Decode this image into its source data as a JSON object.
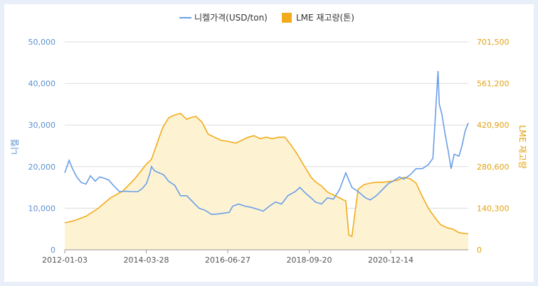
{
  "chart_data": {
    "type": "line",
    "legend": {
      "position": "top",
      "items": [
        "니켈가격(USD/ton)",
        "LME 재고량(톤)"
      ]
    },
    "ylabel": "니켈",
    "y2label": "LME 재고량",
    "ylim": [
      0,
      50000
    ],
    "y2lim": [
      0,
      701500
    ],
    "yticks": [
      "0",
      "10,000",
      "20,000",
      "30,000",
      "40,000",
      "50,000"
    ],
    "y2ticks": [
      "0",
      "140,300",
      "280,600",
      "420,900",
      "561,200",
      "701,500"
    ],
    "xticks": [
      "2012-01-03",
      "2014-03-28",
      "2016-06-27",
      "2018-09-20",
      "2020-12-14"
    ],
    "grid": true,
    "colors": {
      "nickel": "#6a9fe8",
      "inventory": "#f2ab1c",
      "inventory_fill": "#fdf3d3"
    },
    "series": [
      {
        "name": "니켈가격(USD/ton)",
        "axis": "left",
        "x": [
          "2012-01-03",
          "2012-02-15",
          "2012-03-20",
          "2012-05-01",
          "2012-06-15",
          "2012-08-01",
          "2012-09-15",
          "2012-11-01",
          "2012-12-15",
          "2013-02-01",
          "2013-03-15",
          "2013-05-01",
          "2013-07-01",
          "2013-09-01",
          "2013-11-01",
          "2014-01-02",
          "2014-02-15",
          "2014-03-28",
          "2014-05-01",
          "2014-05-15",
          "2014-06-15",
          "2014-08-01",
          "2014-09-15",
          "2014-11-01",
          "2015-01-02",
          "2015-03-01",
          "2015-05-01",
          "2015-07-01",
          "2015-09-01",
          "2015-11-01",
          "2016-01-04",
          "2016-03-01",
          "2016-05-01",
          "2016-06-27",
          "2016-08-01",
          "2016-10-01",
          "2016-12-01",
          "2017-02-01",
          "2017-04-01",
          "2017-06-01",
          "2017-08-01",
          "2017-10-01",
          "2017-12-01",
          "2018-02-01",
          "2018-04-15",
          "2018-06-01",
          "2018-08-01",
          "2018-09-20",
          "2018-11-01",
          "2019-01-02",
          "2019-03-01",
          "2019-05-01",
          "2019-07-01",
          "2019-09-01",
          "2019-11-01",
          "2020-01-02",
          "2020-03-15",
          "2020-05-01",
          "2020-07-01",
          "2020-09-01",
          "2020-11-01",
          "2020-12-14",
          "2021-02-15",
          "2021-04-01",
          "2021-06-01",
          "2021-08-01",
          "2021-10-01",
          "2021-12-01",
          "2022-01-15",
          "2022-03-07",
          "2022-03-20",
          "2022-04-15",
          "2022-05-15",
          "2022-06-15",
          "2022-07-15",
          "2022-08-15",
          "2022-10-01",
          "2022-11-01",
          "2022-12-01",
          "2023-01-02"
        ],
        "values": [
          18500,
          21500,
          19500,
          17500,
          16200,
          15800,
          17800,
          16500,
          17500,
          17200,
          16800,
          15500,
          14000,
          14100,
          14000,
          14000,
          14800,
          16000,
          18500,
          20000,
          19000,
          18500,
          18000,
          16500,
          15500,
          13000,
          13000,
          11500,
          10000,
          9500,
          8500,
          8600,
          8800,
          9000,
          10500,
          11000,
          10500,
          10200,
          9800,
          9300,
          10500,
          11500,
          11000,
          13000,
          14000,
          15000,
          13500,
          12500,
          11500,
          11000,
          12500,
          12200,
          14500,
          18500,
          15000,
          14000,
          12500,
          12000,
          13000,
          14500,
          16000,
          16500,
          17500,
          17000,
          18000,
          19500,
          19500,
          20500,
          22000,
          43000,
          35000,
          32500,
          28000,
          24000,
          19500,
          23000,
          22500,
          25000,
          28500,
          30500
        ]
      },
      {
        "name": "LME 재고량(톤)",
        "axis": "right",
        "x": [
          "2012-01-03",
          "2012-04-01",
          "2012-08-01",
          "2012-12-01",
          "2013-04-01",
          "2013-08-01",
          "2013-12-01",
          "2014-03-28",
          "2014-05-15",
          "2014-07-01",
          "2014-09-01",
          "2014-11-01",
          "2015-01-02",
          "2015-03-01",
          "2015-05-01",
          "2015-06-01",
          "2015-08-01",
          "2015-10-01",
          "2015-12-01",
          "2016-02-01",
          "2016-04-01",
          "2016-06-27",
          "2016-09-01",
          "2016-11-01",
          "2017-01-02",
          "2017-03-01",
          "2017-05-01",
          "2017-07-01",
          "2017-09-01",
          "2017-11-01",
          "2018-01-02",
          "2018-03-01",
          "2018-05-01",
          "2018-07-01",
          "2018-09-20",
          "2018-11-01",
          "2019-01-02",
          "2019-03-01",
          "2019-05-01",
          "2019-07-01",
          "2019-08-15",
          "2019-09-01",
          "2019-10-01",
          "2019-11-01",
          "2019-12-01",
          "2020-01-02",
          "2020-03-01",
          "2020-05-01",
          "2020-07-01",
          "2020-09-01",
          "2020-11-01",
          "2020-12-14",
          "2021-02-01",
          "2021-04-01",
          "2021-06-01",
          "2021-08-01",
          "2021-10-01",
          "2021-12-01",
          "2022-02-01",
          "2022-04-01",
          "2022-06-01",
          "2022-08-01",
          "2022-10-01",
          "2022-12-01",
          "2023-01-02"
        ],
        "values": [
          91000,
          98000,
          113000,
          140000,
          175000,
          198000,
          240000,
          290000,
          305000,
          350000,
          410000,
          445000,
          455000,
          460000,
          440000,
          445000,
          450000,
          430000,
          390000,
          380000,
          370000,
          365000,
          360000,
          370000,
          380000,
          385000,
          375000,
          380000,
          375000,
          380000,
          380000,
          355000,
          325000,
          290000,
          245000,
          230000,
          215000,
          195000,
          185000,
          175000,
          167000,
          165000,
          50000,
          45000,
          125000,
          205000,
          220000,
          225000,
          228000,
          228000,
          230000,
          232000,
          235000,
          245000,
          240000,
          225000,
          180000,
          140000,
          110000,
          85000,
          75000,
          70000,
          58000,
          55000,
          54000
        ]
      }
    ]
  }
}
